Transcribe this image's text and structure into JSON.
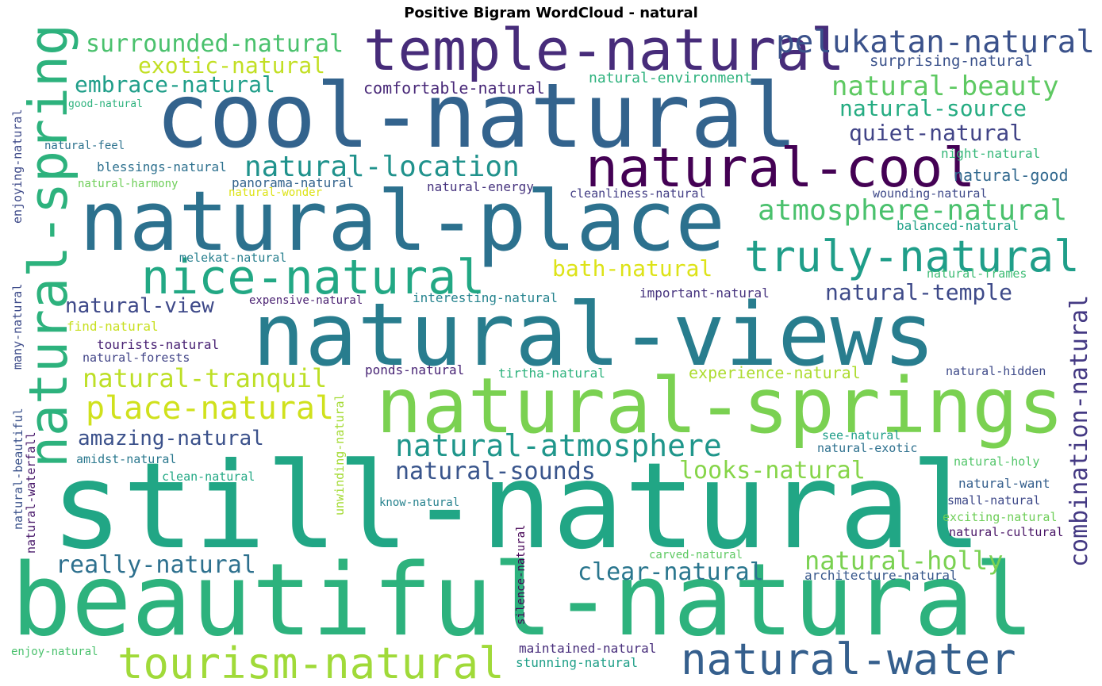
{
  "title": "Positive Bigram WordCloud - natural",
  "chart_data": {
    "type": "wordcloud",
    "title": "Positive Bigram WordCloud - natural",
    "words": [
      {
        "text": "still-natural",
        "color": "#21a685"
      },
      {
        "text": "beautiful-natural",
        "color": "#2db27d"
      },
      {
        "text": "cool-natural",
        "color": "#33638d"
      },
      {
        "text": "natural-views",
        "color": "#287d8e"
      },
      {
        "text": "natural-place",
        "color": "#2c718e"
      },
      {
        "text": "natural-springs",
        "color": "#7ad151"
      },
      {
        "text": "natural-spring",
        "color": "#2db27d"
      },
      {
        "text": "temple-natural",
        "color": "#472c7a"
      },
      {
        "text": "natural-cool",
        "color": "#440154"
      },
      {
        "text": "natural-water",
        "color": "#355f8d"
      },
      {
        "text": "tourism-natural",
        "color": "#a0da39"
      },
      {
        "text": "nice-natural",
        "color": "#22a884"
      },
      {
        "text": "truly-natural",
        "color": "#1f9e89"
      },
      {
        "text": "combination-natural",
        "color": "#443983"
      },
      {
        "text": "natural-atmosphere",
        "color": "#1f968b"
      },
      {
        "text": "pelukatan-natural",
        "color": "#3b528b"
      },
      {
        "text": "natural-beauty",
        "color": "#5ec962"
      },
      {
        "text": "atmosphere-natural",
        "color": "#4ac16d"
      },
      {
        "text": "natural-location",
        "color": "#20928c"
      },
      {
        "text": "surrounded-natural",
        "color": "#4ac16d"
      },
      {
        "text": "natural-source",
        "color": "#25ac82"
      },
      {
        "text": "place-natural",
        "color": "#d0e11c"
      },
      {
        "text": "natural-tranquil",
        "color": "#bddf26"
      },
      {
        "text": "natural-holly",
        "color": "#7ad151"
      },
      {
        "text": "clear-natural",
        "color": "#2a768e"
      },
      {
        "text": "really-natural",
        "color": "#2d708e"
      },
      {
        "text": "embrace-natural",
        "color": "#1f9e89"
      },
      {
        "text": "quiet-natural",
        "color": "#414487"
      },
      {
        "text": "exotic-natural",
        "color": "#c2df23"
      },
      {
        "text": "natural-temple",
        "color": "#3e4a89"
      },
      {
        "text": "bath-natural",
        "color": "#dde318"
      },
      {
        "text": "looks-natural",
        "color": "#86d549"
      },
      {
        "text": "natural-sounds",
        "color": "#39558c"
      },
      {
        "text": "amazing-natural",
        "color": "#3b518b"
      },
      {
        "text": "natural-view",
        "color": "#3e4989"
      },
      {
        "text": "comfortable-natural",
        "color": "#482878"
      },
      {
        "text": "natural-environment",
        "color": "#2db27d"
      },
      {
        "text": "surprising-natural",
        "color": "#3b528b"
      },
      {
        "text": "natural-good",
        "color": "#31688e"
      },
      {
        "text": "experience-natural",
        "color": "#addc30"
      },
      {
        "text": "good-natural",
        "color": "#2db27d"
      },
      {
        "text": "natural-feel",
        "color": "#2c728e"
      },
      {
        "text": "blessings-natural",
        "color": "#2d708e"
      },
      {
        "text": "natural-harmony",
        "color": "#6ece58"
      },
      {
        "text": "panorama-natural",
        "color": "#33638d"
      },
      {
        "text": "natural-wonder",
        "color": "#dde318"
      },
      {
        "text": "natural-energy",
        "color": "#46337e"
      },
      {
        "text": "cleanliness-natural",
        "color": "#433e85"
      },
      {
        "text": "night-natural",
        "color": "#35b779"
      },
      {
        "text": "wounding-natural",
        "color": "#3e4989"
      },
      {
        "text": "balanced-natural",
        "color": "#1fa188"
      },
      {
        "text": "enjoying-natural",
        "color": "#3e4a89"
      },
      {
        "text": "melekat-natural",
        "color": "#277f8e"
      },
      {
        "text": "natural-frames",
        "color": "#3dbc74"
      },
      {
        "text": "expensive-natural",
        "color": "#481f70"
      },
      {
        "text": "interesting-natural",
        "color": "#25838e"
      },
      {
        "text": "important-natural",
        "color": "#46337e"
      },
      {
        "text": "many-natural",
        "color": "#3e4c8a"
      },
      {
        "text": "find-natural",
        "color": "#c8e020"
      },
      {
        "text": "tourists-natural",
        "color": "#482173"
      },
      {
        "text": "natural-forests",
        "color": "#414487"
      },
      {
        "text": "ponds-natural",
        "color": "#482475"
      },
      {
        "text": "tirtha-natural",
        "color": "#2db27d"
      },
      {
        "text": "natural-hidden",
        "color": "#3e4a89"
      },
      {
        "text": "natural-beautiful",
        "color": "#3b528b"
      },
      {
        "text": "natural-waterfall",
        "color": "#48186a"
      },
      {
        "text": "unwinding-natural",
        "color": "#a5db36"
      },
      {
        "text": "amidst-natural",
        "color": "#2a788e"
      },
      {
        "text": "clean-natural",
        "color": "#22a884"
      },
      {
        "text": "see-natural",
        "color": "#1f9e89"
      },
      {
        "text": "natural-exotic",
        "color": "#2d708e"
      },
      {
        "text": "natural-holy",
        "color": "#52c569"
      },
      {
        "text": "natural-want",
        "color": "#355f8d"
      },
      {
        "text": "small-natural",
        "color": "#3e4989"
      },
      {
        "text": "exciting-natural",
        "color": "#6ece58"
      },
      {
        "text": "natural-cultural",
        "color": "#471365"
      },
      {
        "text": "know-natural",
        "color": "#26828e"
      },
      {
        "text": "silence-natural",
        "color": "#440154"
      },
      {
        "text": "carved-natural",
        "color": "#5ec962"
      },
      {
        "text": "architecture-natural",
        "color": "#38588c"
      },
      {
        "text": "maintained-natural",
        "color": "#472d7b"
      },
      {
        "text": "stunning-natural",
        "color": "#1f9f88"
      },
      {
        "text": "enjoy-natural",
        "color": "#4ac16d"
      }
    ]
  }
}
